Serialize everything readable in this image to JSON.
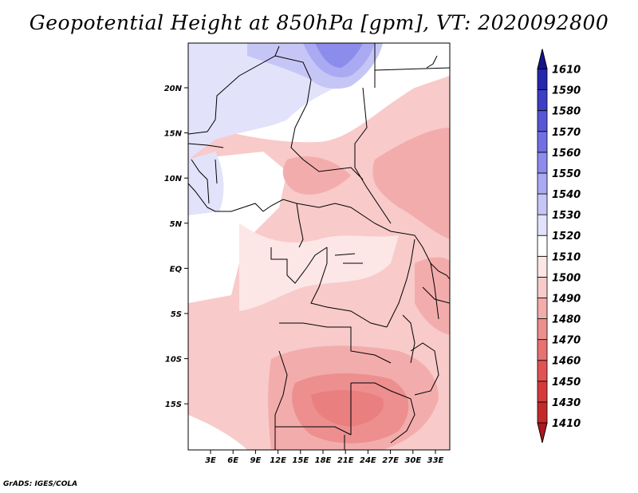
{
  "title": "Geopotential Height at 850hPa [gpm], VT: 2020092800",
  "credit": "GrADS: IGES/COLA",
  "map": {
    "lat_labels": [
      "20N",
      "15N",
      "10N",
      "5N",
      "EQ",
      "5S",
      "10S",
      "15S"
    ],
    "lon_labels": [
      "3E",
      "6E",
      "9E",
      "12E",
      "15E",
      "18E",
      "21E",
      "24E",
      "27E",
      "30E",
      "33E"
    ]
  },
  "colorbar": {
    "levels": [
      "1410",
      "1430",
      "1450",
      "1460",
      "1470",
      "1480",
      "1490",
      "1500",
      "1510",
      "1520",
      "1530",
      "1540",
      "1550",
      "1560",
      "1570",
      "1580",
      "1590",
      "1610"
    ],
    "colors": [
      "#b0171d",
      "#c42a2a",
      "#d63b3b",
      "#e15454",
      "#e77272",
      "#ed8f8f",
      "#f3acac",
      "#f8caca",
      "#fde6e6",
      "#ffffff",
      "#e2e2fb",
      "#c6c6f6",
      "#aaaaf2",
      "#8c8cec",
      "#7070e4",
      "#5656d6",
      "#3d3dc6",
      "#2626ae",
      "#141490"
    ]
  }
}
